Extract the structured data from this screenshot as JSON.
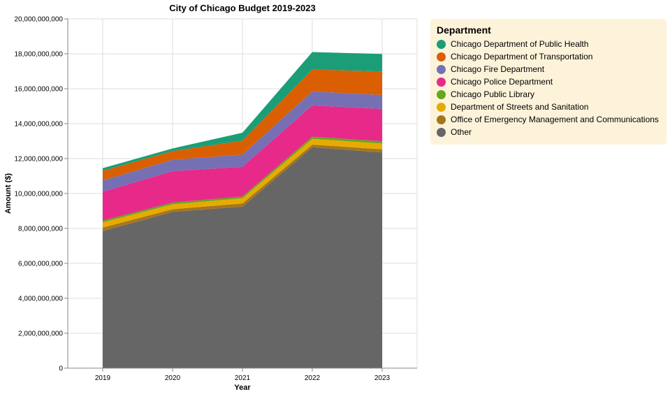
{
  "chart_data": {
    "type": "area",
    "stacked": true,
    "title": "City of Chicago Budget 2019-2023",
    "xlabel": "Year",
    "ylabel": "Amount ($)",
    "x": [
      "2019",
      "2020",
      "2021",
      "2022",
      "2023"
    ],
    "ylim": [
      0,
      20000000000
    ],
    "yticks": [
      "0",
      "2,000,000,000",
      "4,000,000,000",
      "6,000,000,000",
      "8,000,000,000",
      "10,000,000,000",
      "12,000,000,000",
      "14,000,000,000",
      "16,000,000,000",
      "18,000,000,000",
      "20,000,000,000"
    ],
    "grid": true,
    "legend_title": "Department",
    "legend_position": "right",
    "series": [
      {
        "name": "Other",
        "color": "#666666",
        "values": [
          7850000000,
          8950000000,
          9250000000,
          12650000000,
          12350000000
        ]
      },
      {
        "name": "Office of Emergency Management and Communications",
        "color": "#a6761d",
        "values": [
          200000000,
          150000000,
          180000000,
          150000000,
          180000000
        ]
      },
      {
        "name": "Department of Streets and Sanitation",
        "color": "#e6ab02",
        "values": [
          300000000,
          280000000,
          300000000,
          330000000,
          330000000
        ]
      },
      {
        "name": "Chicago Public Library",
        "color": "#66a61e",
        "values": [
          100000000,
          100000000,
          100000000,
          120000000,
          130000000
        ]
      },
      {
        "name": "Chicago Police Department",
        "color": "#e7298a",
        "values": [
          1650000000,
          1800000000,
          1700000000,
          1800000000,
          1850000000
        ]
      },
      {
        "name": "Chicago Fire Department",
        "color": "#7570b3",
        "values": [
          650000000,
          650000000,
          700000000,
          800000000,
          800000000
        ]
      },
      {
        "name": "Chicago Department of Transportation",
        "color": "#d95f02",
        "values": [
          550000000,
          500000000,
          800000000,
          1250000000,
          1350000000
        ]
      },
      {
        "name": "Chicago Department of Public Health",
        "color": "#1b9e77",
        "values": [
          150000000,
          150000000,
          450000000,
          1000000000,
          1000000000
        ]
      }
    ],
    "legend_order": [
      "Chicago Department of Public Health",
      "Chicago Department of Transportation",
      "Chicago Fire Department",
      "Chicago Police Department",
      "Chicago Public Library",
      "Department of Streets and Sanitation",
      "Office of Emergency Management and Communications",
      "Other"
    ]
  }
}
